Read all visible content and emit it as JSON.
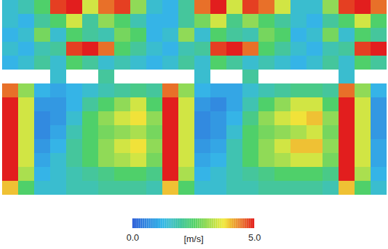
{
  "chart_data": {
    "type": "heatmap",
    "tick_labels": false,
    "cells": [
      [
        1.5,
        1.8,
        2.5,
        4.8,
        5,
        3.5,
        4.5,
        4.8,
        3,
        1.5,
        1.2,
        2,
        4.5,
        5,
        3.5,
        4.8,
        4.5,
        3.5,
        1.5,
        1.5,
        3,
        4.8,
        5,
        4.5
      ],
      [
        1.5,
        1.2,
        2,
        2.5,
        3.5,
        2,
        3,
        2.5,
        1.8,
        1.2,
        1.2,
        2,
        2.8,
        3.5,
        2.2,
        3,
        2.5,
        2,
        1.5,
        1.2,
        2,
        2.5,
        3.5,
        2.5
      ],
      [
        1.2,
        1.5,
        2.8,
        1.5,
        2.5,
        2,
        1.8,
        2.8,
        2.5,
        1.2,
        1.5,
        3,
        1.5,
        2.5,
        2,
        1.8,
        2.8,
        2.5,
        1.2,
        1.5,
        2.8,
        1.5,
        2.5,
        2
      ],
      [
        1.5,
        1.2,
        1.8,
        2,
        4.8,
        5,
        4.5,
        2.5,
        2,
        1.5,
        1.2,
        1.8,
        2,
        4.8,
        5,
        4.5,
        2.5,
        2,
        1.5,
        1.2,
        1.8,
        2,
        4.8,
        5
      ],
      [
        1.2,
        1.5,
        2,
        1.5,
        2.5,
        2,
        1.5,
        1.8,
        1.5,
        1.2,
        1.5,
        2,
        1.5,
        2.5,
        2,
        1.5,
        1.8,
        1.5,
        1.2,
        1.5,
        2,
        1.5,
        2.5,
        2
      ],
      [
        null,
        null,
        null,
        1.5,
        null,
        null,
        2,
        null,
        null,
        null,
        null,
        null,
        1.5,
        null,
        null,
        2,
        null,
        null,
        null,
        null,
        null,
        1.5,
        null,
        null
      ],
      [
        4.5,
        3,
        1.2,
        1,
        1.2,
        1.5,
        1.8,
        2,
        2.2,
        2,
        4.5,
        3,
        1.2,
        1,
        1,
        1.5,
        1.8,
        2,
        2.2,
        2.2,
        2,
        4.5,
        3,
        1.2
      ],
      [
        5,
        3.5,
        0.8,
        0.8,
        1.2,
        2,
        2.5,
        3,
        3.5,
        2.5,
        5,
        3.5,
        0.8,
        0.6,
        1,
        1.8,
        2.5,
        3,
        3.5,
        3.5,
        2.5,
        5,
        3.5,
        0.8
      ],
      [
        5,
        3.5,
        0.6,
        0.8,
        1.5,
        2.5,
        3,
        3.5,
        3.8,
        3,
        5,
        3.5,
        0.6,
        0.8,
        1.2,
        2.2,
        3,
        3.5,
        3.8,
        4,
        3,
        5,
        3.5,
        0.8
      ],
      [
        5,
        3.5,
        0.6,
        1,
        1.8,
        2.5,
        2.8,
        3,
        3.2,
        2.8,
        5,
        3.5,
        0.6,
        0.8,
        1.5,
        2.5,
        2.8,
        3,
        3.2,
        3.5,
        2.8,
        5,
        3.5,
        0.8
      ],
      [
        5,
        3.5,
        0.8,
        1.2,
        2,
        2.5,
        3,
        3.5,
        3.8,
        3,
        5,
        3.5,
        0.8,
        1,
        1.8,
        2.5,
        3,
        3.5,
        4,
        4,
        3,
        5,
        3.5,
        1
      ],
      [
        5,
        3.5,
        1,
        1.5,
        2,
        2.5,
        3,
        3.2,
        3.5,
        2.8,
        5,
        3.5,
        1,
        1.2,
        1.8,
        2.5,
        3,
        3.2,
        3.5,
        3.5,
        2.8,
        5,
        3.5,
        1
      ],
      [
        5,
        3.2,
        1.2,
        1.5,
        1.8,
        2,
        2.2,
        2.5,
        2.5,
        2.2,
        5,
        3.2,
        1.2,
        1.5,
        1.8,
        2,
        2.2,
        2.5,
        2.5,
        2.5,
        2.2,
        5,
        3.2,
        1.2
      ],
      [
        4,
        2.5,
        1.5,
        1.5,
        1.8,
        1.8,
        2,
        2,
        2,
        1.8,
        4,
        2.5,
        1.5,
        1.5,
        1.8,
        1.8,
        2,
        2,
        2,
        2,
        1.8,
        4,
        2.5,
        1.5
      ]
    ],
    "colorbar": {
      "range": [
        0,
        5
      ],
      "label": "[m/s]",
      "ticks": [
        {
          "value": 0,
          "label": "0.0"
        },
        {
          "value": 5,
          "label": "5.0"
        }
      ]
    }
  }
}
